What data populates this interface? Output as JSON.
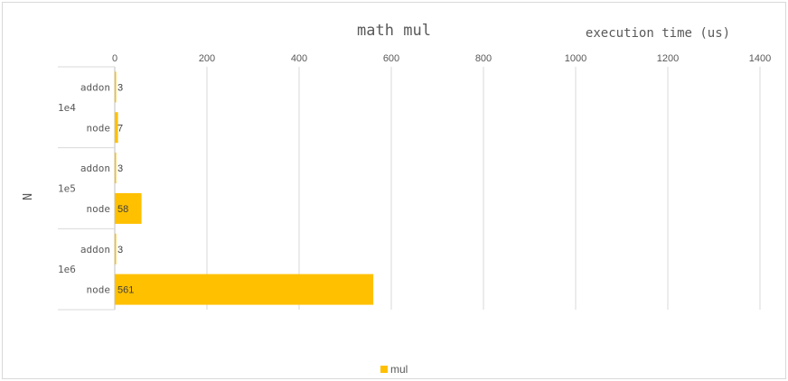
{
  "chart_data": {
    "type": "bar",
    "orientation": "horizontal",
    "title": "math mul",
    "xlabel": "execution time (us)",
    "ylabel": "N",
    "xlim": [
      0,
      1400
    ],
    "xticks": [
      0,
      200,
      400,
      600,
      800,
      1000,
      1200,
      1400
    ],
    "grid": true,
    "legend_position": "bottom",
    "groups": [
      {
        "label": "1e4",
        "bars": [
          {
            "category": "addon",
            "value": 3
          },
          {
            "category": "node",
            "value": 7
          }
        ]
      },
      {
        "label": "1e5",
        "bars": [
          {
            "category": "addon",
            "value": 3
          },
          {
            "category": "node",
            "value": 58
          }
        ]
      },
      {
        "label": "1e6",
        "bars": [
          {
            "category": "addon",
            "value": 3
          },
          {
            "category": "node",
            "value": 561
          }
        ]
      }
    ],
    "series": [
      {
        "name": "mul",
        "color": "#ffc000"
      }
    ]
  }
}
